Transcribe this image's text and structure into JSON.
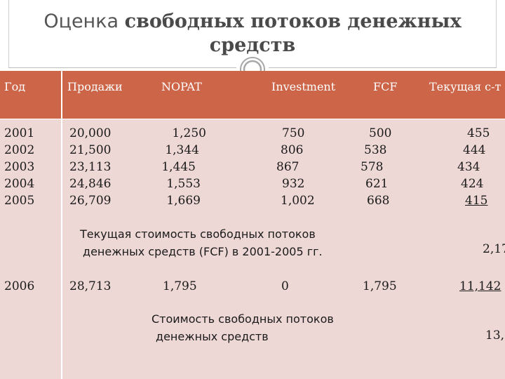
{
  "title": {
    "part1": "Оценка ",
    "part2": "свободных потоков денежных",
    "part3": "средств"
  },
  "columns": [
    "Год",
    "Продажи",
    "NOPAT",
    "Investment",
    "FCF",
    "Текущая с-т"
  ],
  "rows": {
    "years": [
      "2001",
      "2002",
      "2003",
      "2004",
      "2005"
    ],
    "sales": [
      "20,000",
      "21,500",
      "23,113",
      "24,846",
      "26,709"
    ],
    "nopat": [
      "1,250",
      "1,344",
      "1,445",
      "1,553",
      "1,669"
    ],
    "investment": [
      "750",
      "806",
      "867",
      "932",
      "1,002"
    ],
    "fcf": [
      "500",
      "538",
      "578",
      "621",
      "668"
    ],
    "pv": [
      "455",
      "444",
      "434",
      "424",
      "415"
    ]
  },
  "pv_note": {
    "line1": "Текущая стоимость свободных потоков",
    "line2": "денежных средств (FCF) в 2001-2005 гг.",
    "value": "2,17"
  },
  "row2006": {
    "year": "2006",
    "sales": "28,713",
    "nopat": "1,795",
    "investment": "0",
    "fcf": "1,795",
    "pv": "11,142"
  },
  "value_note": {
    "line1": "Стоимость свободных потоков",
    "line2": "денежных средств",
    "value": "13,"
  },
  "colors": {
    "header": "#cd6548",
    "body": "#eed8d6"
  }
}
